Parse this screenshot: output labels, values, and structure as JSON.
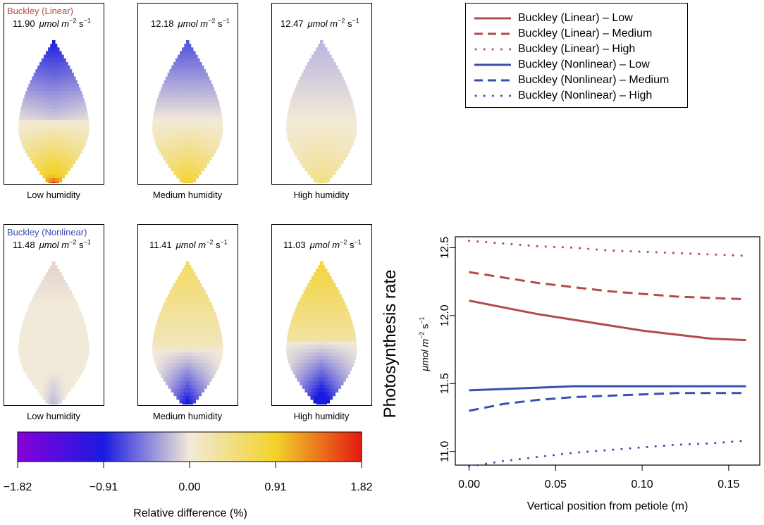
{
  "rows": [
    {
      "model": "Buckley (Linear)",
      "model_color": "#b34b4b",
      "panels": [
        {
          "value": "11.90",
          "unit_main": "μmol m",
          "unit_exp1": "−2",
          "unit_s": " s",
          "unit_exp2": "−1",
          "label": "Low humidity",
          "pattern": "lin-low"
        },
        {
          "value": "12.18",
          "unit_main": "μmol m",
          "unit_exp1": "−2",
          "unit_s": " s",
          "unit_exp2": "−1",
          "label": "Medium humidity",
          "pattern": "lin-med"
        },
        {
          "value": "12.47",
          "unit_main": "μmol m",
          "unit_exp1": "−2",
          "unit_s": " s",
          "unit_exp2": "−1",
          "label": "High humidity",
          "pattern": "lin-high"
        }
      ]
    },
    {
      "model": "Buckley (Nonlinear)",
      "model_color": "#3a4fb0",
      "panels": [
        {
          "value": "11.48",
          "unit_main": "μmol m",
          "unit_exp1": "−2",
          "unit_s": " s",
          "unit_exp2": "−1",
          "label": "Low humidity",
          "pattern": "non-low"
        },
        {
          "value": "11.41",
          "unit_main": "μmol m",
          "unit_exp1": "−2",
          "unit_s": " s",
          "unit_exp2": "−1",
          "label": "Medium humidity",
          "pattern": "non-med"
        },
        {
          "value": "11.03",
          "unit_main": "μmol m",
          "unit_exp1": "−2",
          "unit_s": " s",
          "unit_exp2": "−1",
          "label": "High humidity",
          "pattern": "non-high"
        }
      ]
    }
  ],
  "colorbar": {
    "title": "Relative difference (%)",
    "ticks": [
      "−1.82",
      "−0.91",
      "0.00",
      "0.91",
      "1.82"
    ],
    "tick_values": [
      -1.82,
      -0.91,
      0.0,
      0.91,
      1.82
    ],
    "colors": [
      "#8800d8",
      "#1a1ae0",
      "#f2ead8",
      "#f3d22a",
      "#e31a10"
    ]
  },
  "legend": {
    "entries": [
      {
        "label": "Buckley (Linear) – Low",
        "color": "#b34b4b",
        "style": "solid"
      },
      {
        "label": "Buckley (Linear) – Medium",
        "color": "#b34b4b",
        "style": "dashed"
      },
      {
        "label": "Buckley (Linear) – High",
        "color": "#b34b4b",
        "style": "dotted"
      },
      {
        "label": "Buckley (Nonlinear) – Low",
        "color": "#3a4fb0",
        "style": "solid"
      },
      {
        "label": "Buckley (Nonlinear) – Medium",
        "color": "#3a4fb0",
        "style": "dashed"
      },
      {
        "label": "Buckley (Nonlinear) – High",
        "color": "#3a4fb0",
        "style": "dotted"
      }
    ]
  },
  "chart_data": {
    "type": "line",
    "ylabel_main": "Photosynthesis rate",
    "ylabel_unit_main": "μmol m",
    "ylabel_unit_exp1": "−2",
    "ylabel_unit_s": " s",
    "ylabel_unit_exp2": "−1",
    "xlabel": "Vertical position from petiole (m)",
    "xlim": [
      -0.008,
      0.168
    ],
    "ylim": [
      10.9,
      12.58
    ],
    "xticks": [
      0.0,
      0.05,
      0.1,
      0.15
    ],
    "xtick_labels": [
      "0.00",
      "0.05",
      "0.10",
      "0.15"
    ],
    "yticks": [
      11.0,
      11.5,
      12.0,
      12.5
    ],
    "ytick_labels": [
      "11.0",
      "11.5",
      "12.0",
      "12.5"
    ],
    "x": [
      0.0,
      0.02,
      0.04,
      0.06,
      0.08,
      0.1,
      0.12,
      0.14,
      0.16
    ],
    "series": [
      {
        "name": "Buckley (Linear) – Low",
        "color": "#b34b4b",
        "style": "solid",
        "values": [
          12.11,
          12.06,
          12.01,
          11.97,
          11.93,
          11.89,
          11.86,
          11.83,
          11.82
        ]
      },
      {
        "name": "Buckley (Linear) – Medium",
        "color": "#b34b4b",
        "style": "dashed",
        "values": [
          12.32,
          12.28,
          12.24,
          12.21,
          12.18,
          12.16,
          12.14,
          12.13,
          12.12
        ]
      },
      {
        "name": "Buckley (Linear) – High",
        "color": "#b34b4b",
        "style": "dotted",
        "values": [
          12.55,
          12.53,
          12.51,
          12.5,
          12.48,
          12.47,
          12.46,
          12.45,
          12.44
        ]
      },
      {
        "name": "Buckley (Nonlinear) – Low",
        "color": "#3a4fb0",
        "style": "solid",
        "values": [
          11.45,
          11.46,
          11.47,
          11.48,
          11.48,
          11.48,
          11.48,
          11.48,
          11.48
        ]
      },
      {
        "name": "Buckley (Nonlinear) – Medium",
        "color": "#3a4fb0",
        "style": "dashed",
        "values": [
          11.3,
          11.35,
          11.38,
          11.4,
          11.41,
          11.42,
          11.43,
          11.43,
          11.43
        ]
      },
      {
        "name": "Buckley (Nonlinear) – High",
        "color": "#3a4fb0",
        "style": "dotted",
        "values": [
          10.89,
          10.93,
          10.96,
          10.99,
          11.01,
          11.03,
          11.05,
          11.06,
          11.08
        ]
      }
    ]
  }
}
